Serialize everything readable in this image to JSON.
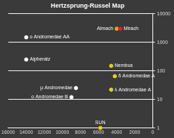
{
  "chart_data": {
    "type": "scatter",
    "title": "Hertzsprung-Russel Map",
    "x": [
      14000,
      4000,
      3600,
      14000,
      4600,
      4200,
      4600,
      8500,
      9000,
      5800
    ],
    "values": [
      1500,
      3000,
      3000,
      250,
      150,
      65,
      22,
      25,
      12,
      1
    ],
    "point_labels": [
      "ο Andromedae AA",
      "Almach",
      "Mirach",
      "Alpheratz",
      "Nembus",
      "δ Andromedae A",
      "λ Andromedae A",
      "μ Andromedae",
      "ο Andromedae B",
      "SUN"
    ],
    "colors": [
      "#ffffff",
      "#e8a020",
      "#e02020",
      "#ffffff",
      "#e8d020",
      "#e8d020",
      "#e8d020",
      "#ffffff",
      "#ffffff",
      "#f0d000"
    ],
    "xlim": [
      16000,
      0
    ],
    "xticks": [
      16000,
      14000,
      12000,
      10000,
      8000,
      6000,
      4000,
      2000,
      0
    ],
    "ylim": [
      1,
      10000
    ],
    "yticks": [
      1,
      10,
      100,
      1000,
      10000
    ],
    "log": "y",
    "grid": true
  }
}
